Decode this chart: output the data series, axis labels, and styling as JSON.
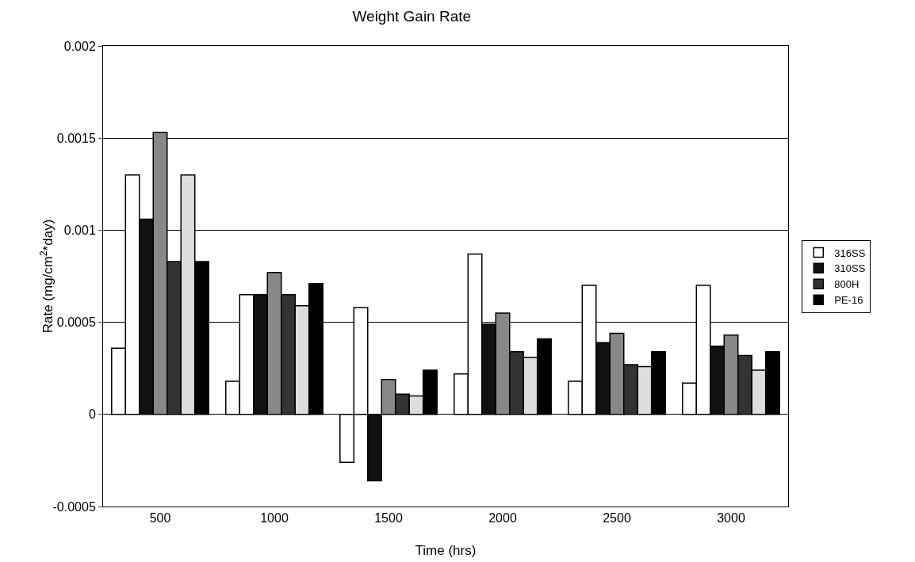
{
  "chart_data": {
    "type": "bar",
    "title": "Weight Gain Rate",
    "xlabel": "Time (hrs)",
    "ylabel": "Rate (mg/cm$^{2}$*day)",
    "categories": [
      "500",
      "1000",
      "1500",
      "2000",
      "2500",
      "3000"
    ],
    "series": [
      {
        "color": "#ffffff",
        "values": [
          0.00036,
          0.00018,
          -0.00026,
          0.00022,
          0.00018,
          0.00017
        ]
      },
      {
        "name": "316SS",
        "color": "#ffffff",
        "values": [
          0.0013,
          0.00065,
          0.00058,
          0.00087,
          0.0007,
          0.0007
        ]
      },
      {
        "name": "310SS",
        "color": "#111111",
        "values": [
          0.00106,
          0.00065,
          -0.00036,
          0.00049,
          0.00039,
          0.00037
        ]
      },
      {
        "color": "#888888",
        "values": [
          0.00153,
          0.00077,
          0.00019,
          0.00055,
          0.00044,
          0.00043
        ]
      },
      {
        "name": "800H",
        "color": "#333333",
        "values": [
          0.00083,
          0.00065,
          0.00011,
          0.00034,
          0.00027,
          0.00032
        ]
      },
      {
        "color": "#dddddd",
        "values": [
          0.0013,
          0.00059,
          0.0001,
          0.00031,
          0.00026,
          0.00024
        ]
      },
      {
        "name": "PE-16",
        "color": "#000000",
        "values": [
          0.00083,
          0.00071,
          0.00024,
          0.00041,
          0.00034,
          0.00034
        ]
      }
    ],
    "ylim": [
      -0.0005,
      0.002
    ],
    "yticks": [
      -0.0005,
      0,
      0.0005,
      0.001,
      0.0015,
      0.002
    ],
    "grid": "y",
    "legend": "right"
  }
}
